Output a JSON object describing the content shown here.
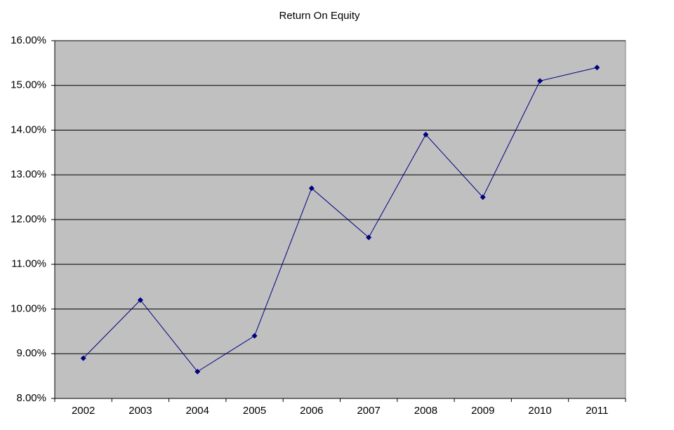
{
  "chart_data": {
    "type": "line",
    "title": "Return On Equity",
    "categories": [
      "2002",
      "2003",
      "2004",
      "2005",
      "2006",
      "2007",
      "2008",
      "2009",
      "2010",
      "2011"
    ],
    "series": [
      {
        "color": "#000080",
        "values": [
          8.9,
          10.2,
          8.6,
          9.4,
          12.7,
          11.6,
          13.9,
          12.5,
          15.1,
          15.4
        ]
      }
    ],
    "ylim": [
      8,
      16
    ],
    "yticks": [
      {
        "value": 8,
        "label": "8.00%"
      },
      {
        "value": 9,
        "label": "9.00%"
      },
      {
        "value": 10,
        "label": "10.00%"
      },
      {
        "value": 11,
        "label": "11.00%"
      },
      {
        "value": 12,
        "label": "12.00%"
      },
      {
        "value": 13,
        "label": "13.00%"
      },
      {
        "value": 14,
        "label": "14.00%"
      },
      {
        "value": 15,
        "label": "15.00%"
      },
      {
        "value": 16,
        "label": "16.00%"
      }
    ],
    "grid": true,
    "plot_background": "#c0c0c0"
  }
}
